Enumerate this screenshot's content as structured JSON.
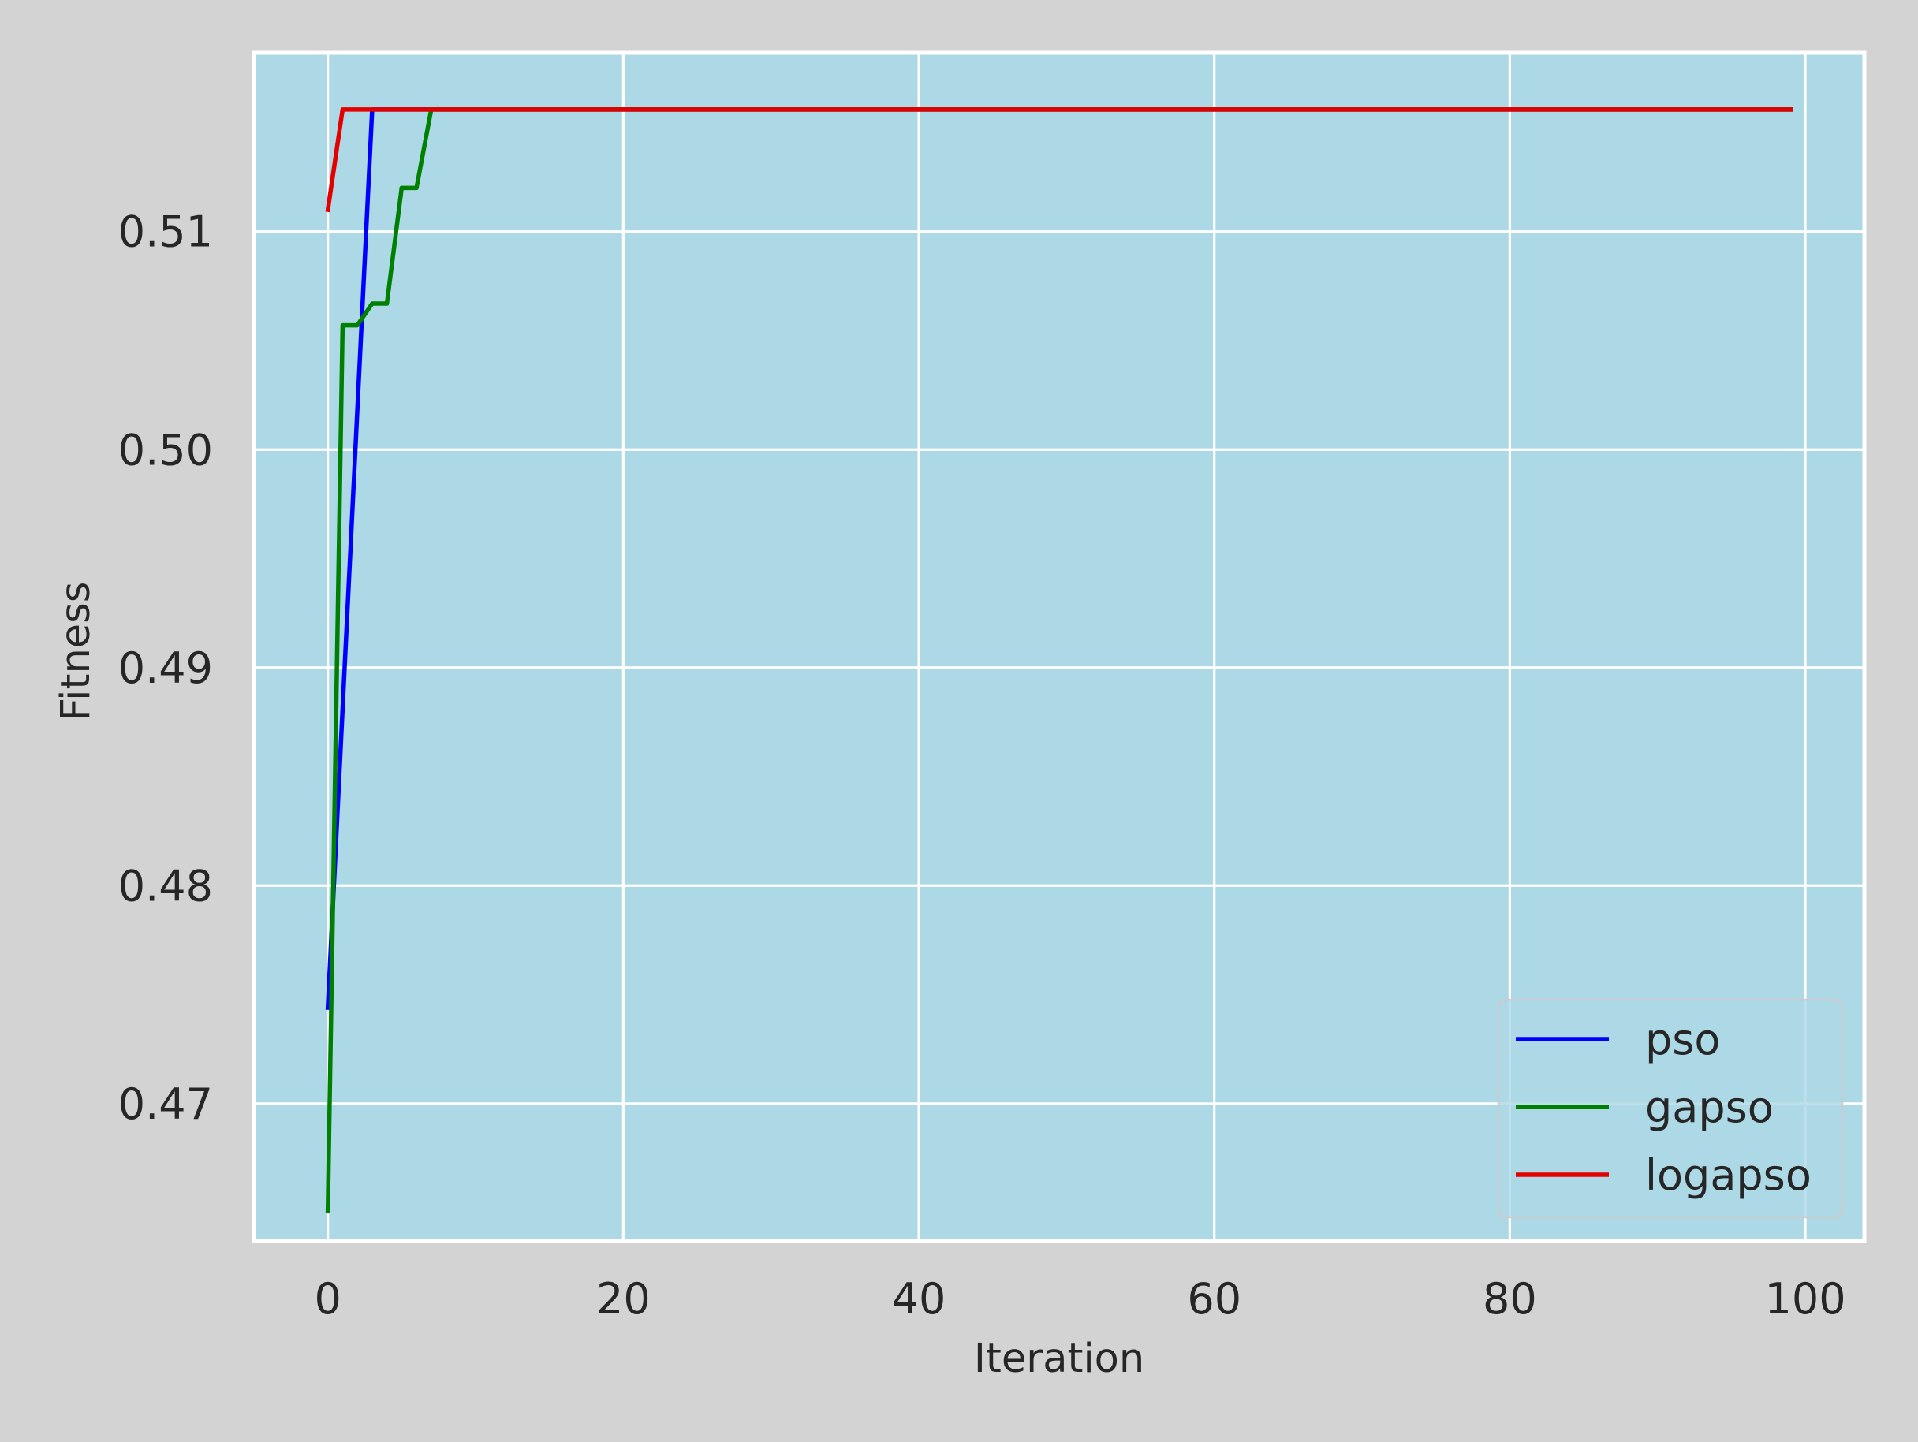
{
  "page": {
    "background": "#d3d3d3"
  },
  "chart_data": {
    "type": "line",
    "title": "",
    "xlabel": "Iteration",
    "ylabel": "Fitness",
    "xlim": [
      -5,
      104
    ],
    "ylim": [
      0.4637,
      0.5182
    ],
    "xticks": [
      0,
      20,
      40,
      60,
      80,
      100
    ],
    "xtick_labels": [
      "0",
      "20",
      "40",
      "60",
      "80",
      "100"
    ],
    "yticks": [
      0.47,
      0.48,
      0.49,
      0.5,
      0.51
    ],
    "ytick_labels": [
      "0.47",
      "0.48",
      "0.49",
      "0.50",
      "0.51"
    ],
    "grid": true,
    "plot_background": "#add8e6",
    "grid_color": "#ffffff",
    "legend_position": "lower-right",
    "series": [
      {
        "name": "pso",
        "color": "#0000ff",
        "points": [
          [
            0,
            0.4744
          ],
          [
            3,
            0.5156
          ],
          [
            99,
            0.5156
          ]
        ]
      },
      {
        "name": "gapso",
        "color": "#008000",
        "points": [
          [
            0,
            0.4651
          ],
          [
            1,
            0.5057
          ],
          [
            2,
            0.5057
          ],
          [
            3,
            0.5067
          ],
          [
            4,
            0.5067
          ],
          [
            5,
            0.512
          ],
          [
            6,
            0.512
          ],
          [
            7,
            0.5156
          ],
          [
            99,
            0.5156
          ]
        ]
      },
      {
        "name": "logapso",
        "color": "#e50000",
        "points": [
          [
            0,
            0.511
          ],
          [
            1,
            0.5156
          ],
          [
            99,
            0.5156
          ]
        ]
      }
    ]
  }
}
